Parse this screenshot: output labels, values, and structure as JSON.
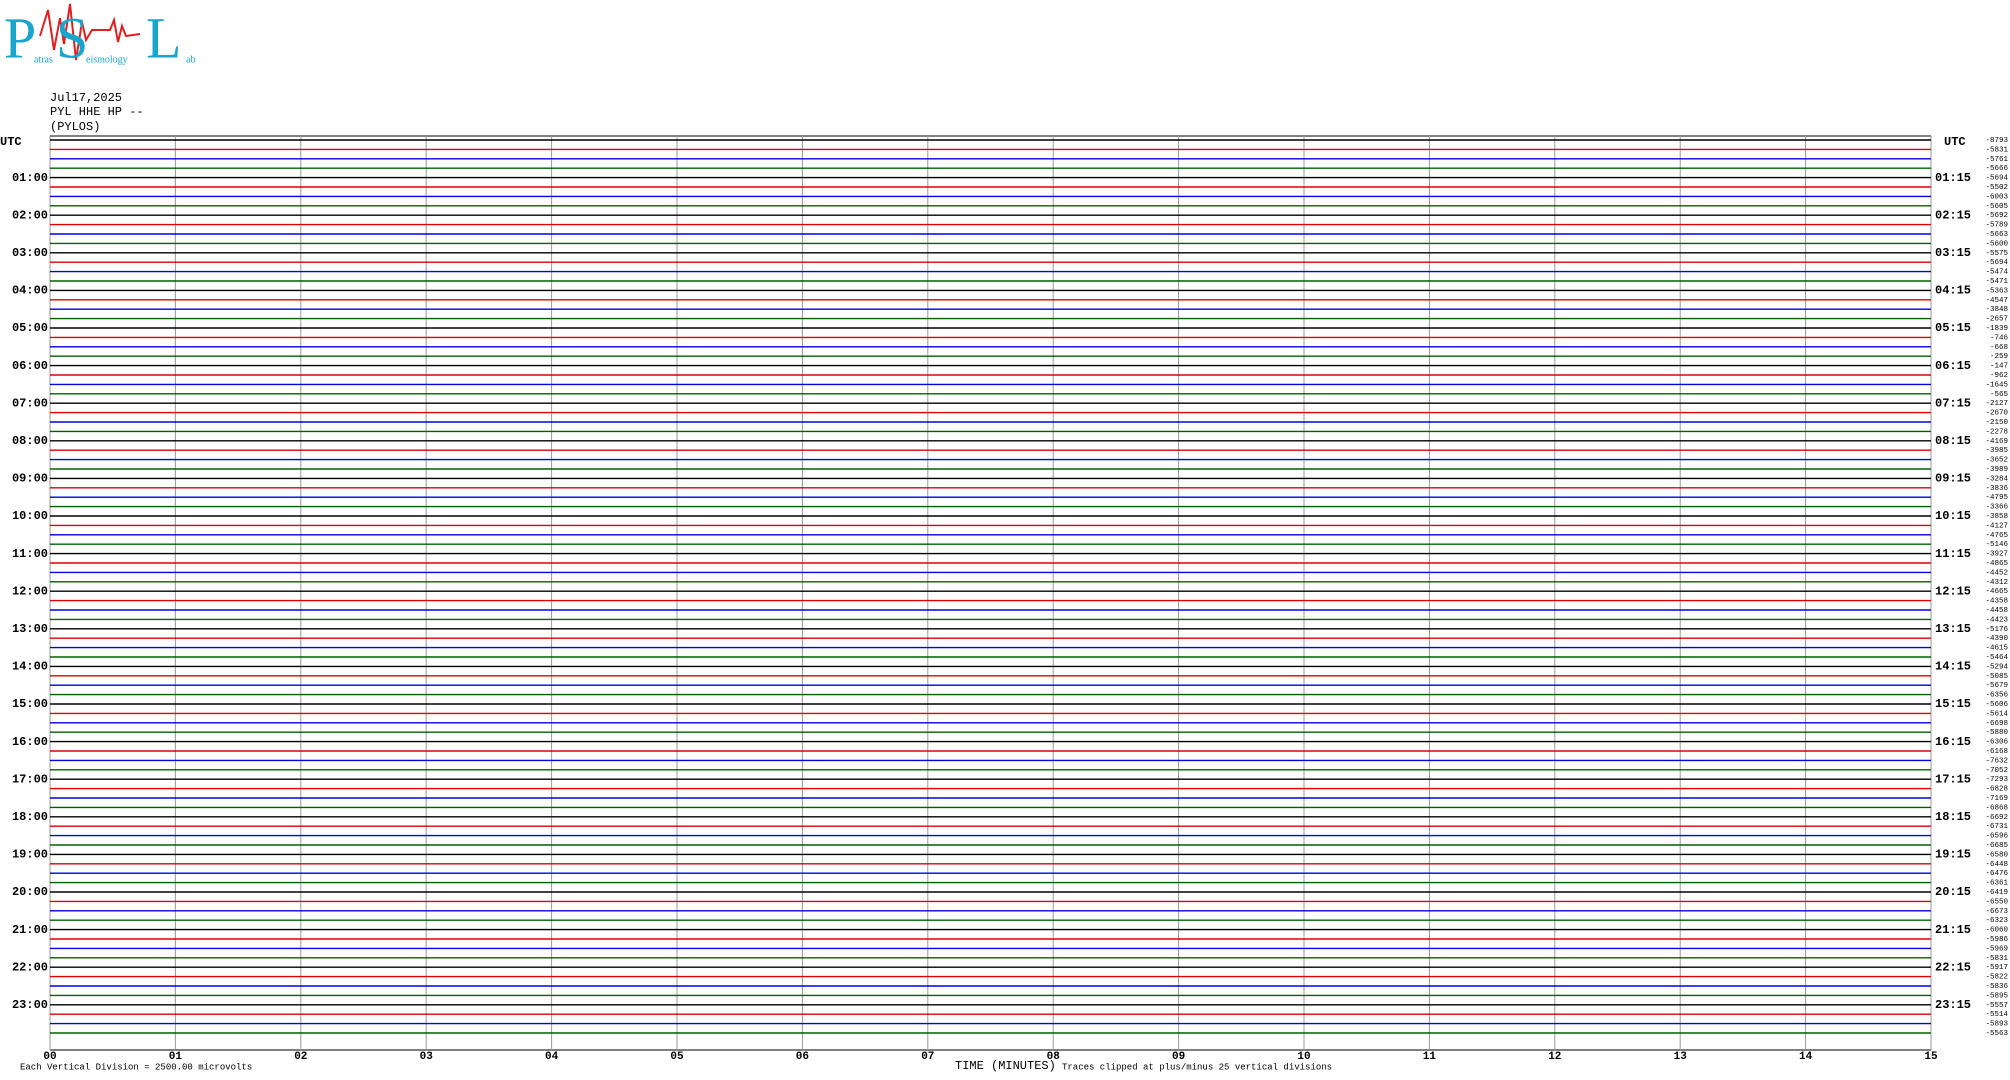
{
  "header": {
    "logo_letters": [
      "P",
      "S",
      "L"
    ],
    "logo_words": [
      "atras",
      "eismology",
      "ab"
    ],
    "date": "Jul17,2025",
    "station": "PYL HHE HP --",
    "site": "(PYLOS)"
  },
  "chart_data": {
    "type": "helicorder",
    "trace_colors": [
      "#000000",
      "#e00000",
      "#0000e0",
      "#006000"
    ],
    "left_labels": [
      "UTC",
      "01:00",
      "02:00",
      "03:00",
      "04:00",
      "05:00",
      "06:00",
      "07:00",
      "08:00",
      "09:00",
      "10:00",
      "11:00",
      "12:00",
      "13:00",
      "14:00",
      "15:00",
      "16:00",
      "17:00",
      "18:00",
      "19:00",
      "20:00",
      "21:00",
      "22:00",
      "23:00"
    ],
    "right_labels": [
      "UTC",
      "01:15",
      "02:15",
      "03:15",
      "04:15",
      "05:15",
      "06:15",
      "07:15",
      "08:15",
      "09:15",
      "10:15",
      "11:15",
      "12:15",
      "13:15",
      "14:15",
      "15:15",
      "16:15",
      "17:15",
      "18:15",
      "19:15",
      "20:15",
      "21:15",
      "22:15",
      "23:15"
    ],
    "offsets": [
      -8793,
      -5831,
      -5761,
      -5666,
      -5694,
      -5502,
      -6003,
      -5605,
      -5692,
      -5789,
      -5663,
      -5600,
      -5575,
      -5694,
      -5474,
      -5471,
      -5363,
      -4547,
      -3848,
      -2657,
      -1839,
      -746,
      -668,
      -259,
      -147,
      -962,
      -1645,
      -565,
      -2127,
      -2670,
      -2150,
      -2278,
      -4169,
      -3985,
      -3652,
      -3989,
      -3284,
      -3836,
      -4795,
      -3366,
      -3858,
      -4127,
      -4765,
      -5146,
      -3927,
      -4865,
      -4452,
      -4312,
      -4665,
      -4358,
      -4458,
      -4423,
      -5176,
      -4390,
      -4615,
      -5464,
      -5294,
      -5085,
      -5679,
      -6356,
      -5606,
      -5614,
      -6698,
      -5880,
      -6306,
      -6168,
      -7632,
      -7052,
      -7293,
      -6828,
      -7169,
      -6868,
      -6692,
      -6731,
      -6596,
      -6685,
      -6580,
      -6448,
      -6476,
      -6361,
      -6419,
      -6550,
      -6673,
      -6323,
      -6060,
      -5986,
      -5969,
      -5831,
      -5917,
      -5822,
      -5836,
      -5895,
      -5557,
      -5514,
      -5893,
      -5563
    ],
    "minute_labels": [
      "00",
      "01",
      "02",
      "03",
      "04",
      "05",
      "06",
      "07",
      "08",
      "09",
      "10",
      "11",
      "12",
      "13",
      "14",
      "15"
    ],
    "xlabel": "TIME (MINUTES)",
    "clip_note": "Traces clipped at plus/minus 25 vertical divisions",
    "scale_note": "Each Vertical Division = 2500.00 microvolts"
  }
}
